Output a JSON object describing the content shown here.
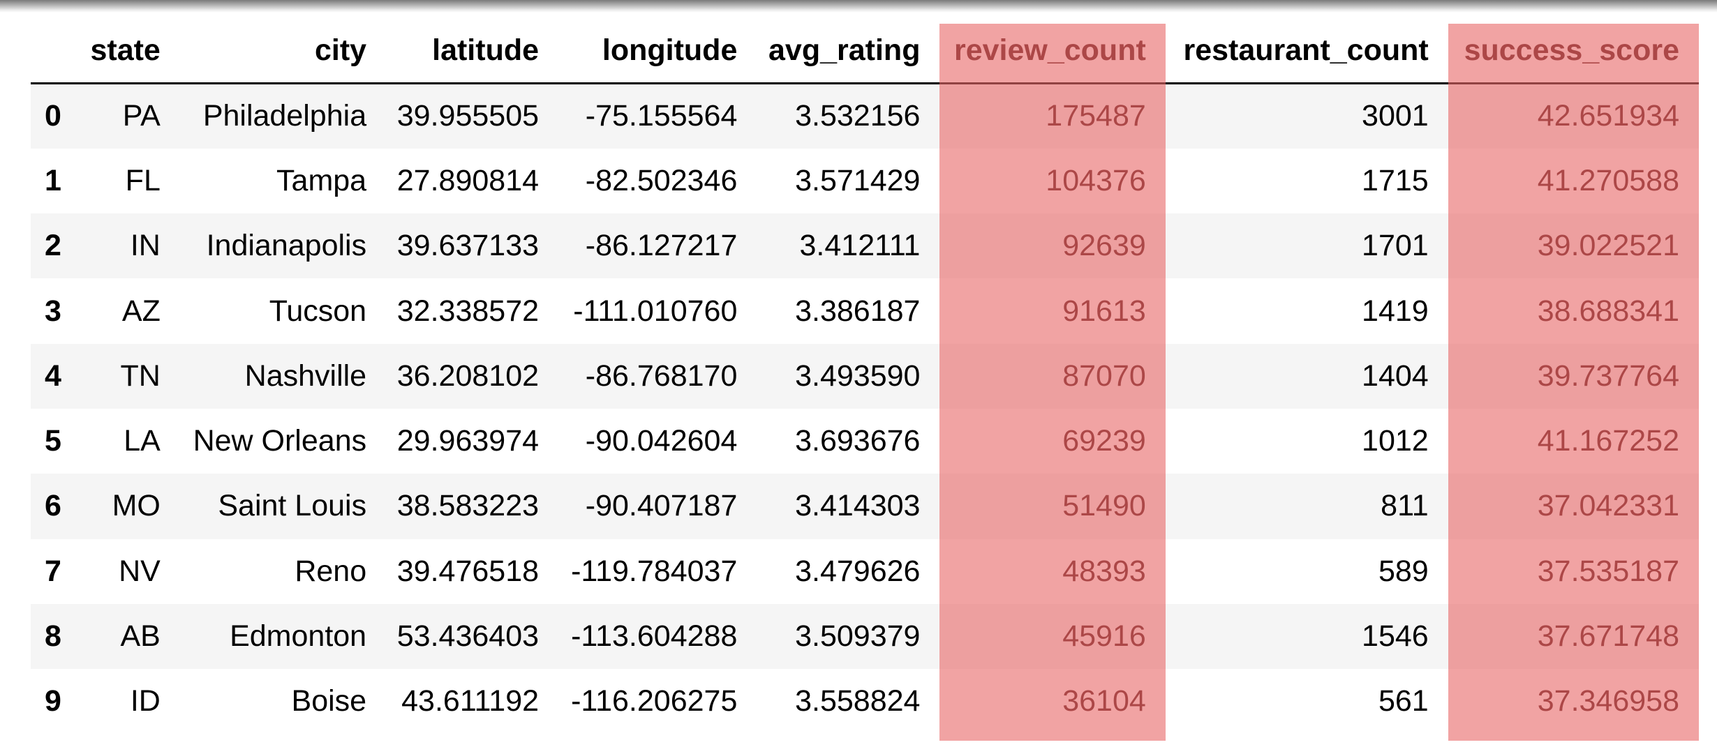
{
  "table": {
    "index_header": "",
    "columns": [
      "state",
      "city",
      "latitude",
      "longitude",
      "avg_rating",
      "review_count",
      "restaurant_count",
      "success_score"
    ],
    "highlighted_columns": [
      "review_count",
      "success_score"
    ],
    "highlight_color": "#e86a6a",
    "row_stripe_color": "#f5f5f5",
    "rows": [
      {
        "index": "0",
        "cells": [
          "PA",
          "Philadelphia",
          "39.955505",
          "-75.155564",
          "3.532156",
          "175487",
          "3001",
          "42.651934"
        ]
      },
      {
        "index": "1",
        "cells": [
          "FL",
          "Tampa",
          "27.890814",
          "-82.502346",
          "3.571429",
          "104376",
          "1715",
          "41.270588"
        ]
      },
      {
        "index": "2",
        "cells": [
          "IN",
          "Indianapolis",
          "39.637133",
          "-86.127217",
          "3.412111",
          "92639",
          "1701",
          "39.022521"
        ]
      },
      {
        "index": "3",
        "cells": [
          "AZ",
          "Tucson",
          "32.338572",
          "-111.010760",
          "3.386187",
          "91613",
          "1419",
          "38.688341"
        ]
      },
      {
        "index": "4",
        "cells": [
          "TN",
          "Nashville",
          "36.208102",
          "-86.768170",
          "3.493590",
          "87070",
          "1404",
          "39.737764"
        ]
      },
      {
        "index": "5",
        "cells": [
          "LA",
          "New Orleans",
          "29.963974",
          "-90.042604",
          "3.693676",
          "69239",
          "1012",
          "41.167252"
        ]
      },
      {
        "index": "6",
        "cells": [
          "MO",
          "Saint Louis",
          "38.583223",
          "-90.407187",
          "3.414303",
          "51490",
          "811",
          "37.042331"
        ]
      },
      {
        "index": "7",
        "cells": [
          "NV",
          "Reno",
          "39.476518",
          "-119.784037",
          "3.479626",
          "48393",
          "589",
          "37.535187"
        ]
      },
      {
        "index": "8",
        "cells": [
          "AB",
          "Edmonton",
          "53.436403",
          "-113.604288",
          "3.509379",
          "45916",
          "1546",
          "37.671748"
        ]
      },
      {
        "index": "9",
        "cells": [
          "ID",
          "Boise",
          "43.611192",
          "-116.206275",
          "3.558824",
          "36104",
          "561",
          "37.346958"
        ]
      }
    ]
  }
}
